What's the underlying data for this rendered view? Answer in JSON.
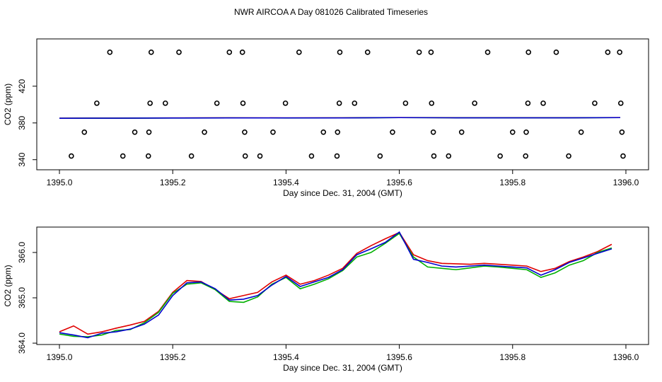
{
  "chart_data": [
    {
      "type": "scatter",
      "title": "NWR AIRCOA A  Day 081026  Calibrated Timeseries",
      "xlabel": "Day since Dec. 31, 2004 (GMT)",
      "ylabel": "CO2 (ppm)",
      "xlim": [
        1394.96,
        1396.04
      ],
      "ylim": [
        329,
        471.5
      ],
      "xticks": [
        {
          "value": 1395.0,
          "label": "1395.0"
        },
        {
          "value": 1395.2,
          "label": "1395.2"
        },
        {
          "value": 1395.4,
          "label": "1395.4"
        },
        {
          "value": 1395.6,
          "label": "1395.6"
        },
        {
          "value": 1395.8,
          "label": "1395.8"
        },
        {
          "value": 1396.0,
          "label": "1396.0"
        }
      ],
      "yticks": [
        340,
        380,
        420
      ],
      "series": [
        {
          "color": "#000000",
          "x": [
            1395.089,
            1395.162,
            1395.211,
            1395.3,
            1395.323,
            1395.423,
            1395.495,
            1395.544,
            1395.635,
            1395.656,
            1395.756,
            1395.828,
            1395.877,
            1395.968,
            1395.989,
            1395.066,
            1395.16,
            1395.187,
            1395.278,
            1395.324,
            1395.399,
            1395.494,
            1395.521,
            1395.611,
            1395.657,
            1395.733,
            1395.827,
            1395.854,
            1395.945,
            1395.991,
            1395.044,
            1395.133,
            1395.158,
            1395.256,
            1395.327,
            1395.377,
            1395.466,
            1395.491,
            1395.588,
            1395.66,
            1395.71,
            1395.8,
            1395.824,
            1395.921,
            1395.993,
            1395.021,
            1395.112,
            1395.157,
            1395.233,
            1395.328,
            1395.354,
            1395.445,
            1395.49,
            1395.566,
            1395.661,
            1395.687,
            1395.778,
            1395.823,
            1395.899,
            1395.995
          ],
          "values": [
            457,
            457,
            457,
            457,
            457,
            457,
            457,
            457,
            457,
            457,
            457,
            457,
            457,
            457,
            457,
            401.5,
            401.5,
            401.5,
            401.5,
            401.5,
            401.5,
            401.5,
            401.5,
            401.5,
            401.5,
            401.5,
            401.5,
            401.5,
            401.5,
            401.5,
            370,
            370,
            370,
            370,
            370,
            370,
            370,
            370,
            370,
            370,
            370,
            370,
            370,
            370,
            370,
            344,
            344,
            344,
            344,
            344,
            344,
            344,
            344,
            344,
            344,
            344,
            344,
            344,
            344,
            344
          ]
        },
        {
          "type": "line",
          "color": "#e00000",
          "x": [
            1395.0,
            1395.1,
            1395.2,
            1395.3,
            1395.4,
            1395.5,
            1395.6,
            1395.7,
            1395.8,
            1395.9,
            1395.99
          ],
          "values": [
            385.2,
            385.3,
            385.5,
            385.6,
            385.5,
            385.6,
            385.9,
            385.7,
            385.7,
            385.7,
            385.9
          ]
        },
        {
          "type": "line",
          "color": "#00b000",
          "x": [
            1395.0,
            1395.1,
            1395.2,
            1395.3,
            1395.4,
            1395.5,
            1395.6,
            1395.7,
            1395.8,
            1395.9,
            1395.99
          ],
          "values": [
            385.1,
            385.2,
            385.4,
            385.5,
            385.4,
            385.5,
            385.8,
            385.6,
            385.6,
            385.6,
            385.8
          ]
        },
        {
          "type": "line",
          "color": "#0000d0",
          "x": [
            1395.0,
            1395.1,
            1395.2,
            1395.3,
            1395.4,
            1395.5,
            1395.6,
            1395.7,
            1395.8,
            1395.9,
            1395.99
          ],
          "values": [
            385.1,
            385.2,
            385.4,
            385.5,
            385.5,
            385.5,
            385.8,
            385.6,
            385.6,
            385.6,
            385.8
          ]
        }
      ]
    },
    {
      "type": "line",
      "xlabel": "Day since Dec. 31, 2004 (GMT)",
      "ylabel": "CO2 (ppm)",
      "xlim": [
        1394.96,
        1396.04
      ],
      "ylim": [
        363.97,
        366.56
      ],
      "xticks": [
        {
          "value": 1395.0,
          "label": "1395.0"
        },
        {
          "value": 1395.2,
          "label": "1395.2"
        },
        {
          "value": 1395.4,
          "label": "1395.4"
        },
        {
          "value": 1395.6,
          "label": "1395.6"
        },
        {
          "value": 1395.8,
          "label": "1395.8"
        },
        {
          "value": 1396.0,
          "label": "1396.0"
        }
      ],
      "yticks": [
        {
          "value": 364,
          "label": "364.0"
        },
        {
          "value": 365,
          "label": "365.0"
        },
        {
          "value": 366,
          "label": "366.0"
        }
      ],
      "x": [
        1395.0,
        1395.025,
        1395.05,
        1395.075,
        1395.1,
        1395.125,
        1395.15,
        1395.175,
        1395.2,
        1395.225,
        1395.25,
        1395.275,
        1395.3,
        1395.325,
        1395.35,
        1395.375,
        1395.4,
        1395.425,
        1395.45,
        1395.475,
        1395.5,
        1395.525,
        1395.55,
        1395.575,
        1395.6,
        1395.625,
        1395.65,
        1395.675,
        1395.7,
        1395.725,
        1395.75,
        1395.775,
        1395.8,
        1395.825,
        1395.85,
        1395.875,
        1395.9,
        1395.925,
        1395.95,
        1395.975
      ],
      "series": [
        {
          "color": "#e00000",
          "values": [
            364.25,
            364.38,
            364.2,
            364.25,
            364.33,
            364.4,
            364.48,
            364.7,
            365.12,
            365.38,
            365.36,
            365.18,
            364.98,
            365.05,
            365.12,
            365.35,
            365.5,
            365.3,
            365.38,
            365.5,
            365.65,
            365.98,
            366.15,
            366.3,
            366.44,
            365.95,
            365.82,
            365.76,
            365.75,
            365.74,
            365.76,
            365.74,
            365.72,
            365.7,
            365.58,
            365.65,
            365.8,
            365.9,
            366.02,
            366.18
          ]
        },
        {
          "color": "#00b000",
          "values": [
            364.2,
            364.15,
            364.14,
            364.18,
            364.28,
            364.3,
            364.45,
            364.68,
            365.1,
            365.3,
            365.33,
            365.18,
            364.92,
            364.9,
            365.02,
            365.3,
            365.45,
            365.2,
            365.3,
            365.42,
            365.6,
            365.9,
            366.0,
            366.2,
            366.42,
            365.9,
            365.68,
            365.65,
            365.62,
            365.66,
            365.7,
            365.68,
            365.65,
            365.62,
            365.45,
            365.55,
            365.72,
            365.82,
            366.0,
            366.1
          ]
        },
        {
          "color": "#0000d0",
          "values": [
            364.23,
            364.18,
            364.12,
            364.22,
            364.25,
            364.31,
            364.42,
            364.62,
            365.05,
            365.33,
            365.35,
            365.2,
            364.95,
            364.97,
            365.05,
            365.28,
            365.47,
            365.25,
            365.35,
            365.45,
            365.62,
            365.95,
            366.08,
            366.22,
            366.45,
            365.85,
            365.78,
            365.7,
            365.68,
            365.7,
            365.72,
            365.7,
            365.68,
            365.66,
            365.5,
            365.62,
            365.78,
            365.88,
            365.98,
            366.08
          ]
        }
      ]
    }
  ]
}
